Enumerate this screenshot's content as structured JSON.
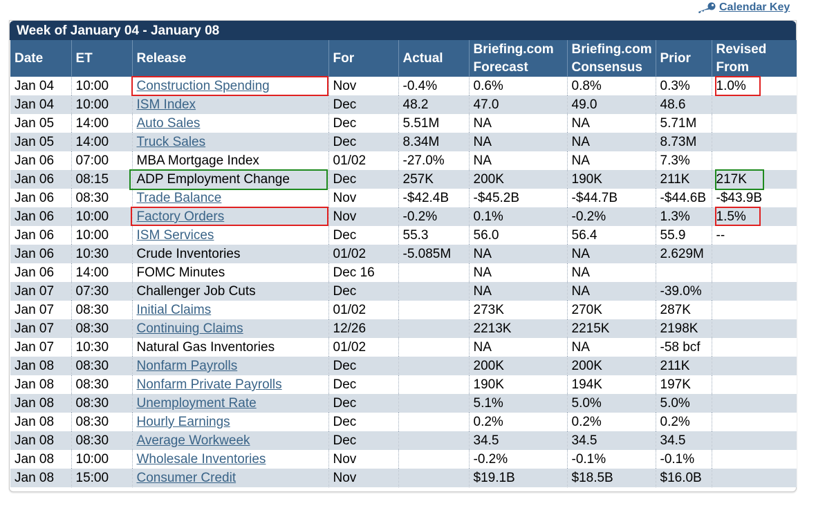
{
  "calendar_key": {
    "label": "Calendar Key",
    "icon": "key-icon"
  },
  "week_title": "Week of January 04 - January 08",
  "columns": [
    {
      "line1": "Date",
      "line2": ""
    },
    {
      "line1": "ET",
      "line2": ""
    },
    {
      "line1": "Release",
      "line2": ""
    },
    {
      "line1": "For",
      "line2": ""
    },
    {
      "line1": "Actual",
      "line2": ""
    },
    {
      "line1": "Briefing.com",
      "line2": "Forecast"
    },
    {
      "line1": "Briefing.com",
      "line2": "Consensus"
    },
    {
      "line1": "Prior",
      "line2": ""
    },
    {
      "line1": "Revised",
      "line2": "From"
    }
  ],
  "rows": [
    {
      "date": "Jan 04",
      "et": "10:00",
      "release": "Construction Spending",
      "link": true,
      "for": "Nov",
      "actual": "-0.4%",
      "forecast": "0.6%",
      "consensus": "0.8%",
      "prior": "0.3%",
      "revised": "1.0%"
    },
    {
      "date": "Jan 04",
      "et": "10:00",
      "release": "ISM Index",
      "link": true,
      "for": "Dec",
      "actual": "48.2",
      "forecast": "47.0",
      "consensus": "49.0",
      "prior": "48.6",
      "revised": ""
    },
    {
      "date": "Jan 05",
      "et": "14:00",
      "release": "Auto Sales",
      "link": true,
      "for": "Dec",
      "actual": "5.51M",
      "forecast": "NA",
      "consensus": "NA",
      "prior": "5.71M",
      "revised": ""
    },
    {
      "date": "Jan 05",
      "et": "14:00",
      "release": "Truck Sales",
      "link": true,
      "for": "Dec",
      "actual": "8.34M",
      "forecast": "NA",
      "consensus": "NA",
      "prior": "8.73M",
      "revised": ""
    },
    {
      "date": "Jan 06",
      "et": "07:00",
      "release": "MBA Mortgage Index",
      "link": false,
      "for": "01/02",
      "actual": "-27.0%",
      "forecast": "NA",
      "consensus": "NA",
      "prior": "7.3%",
      "revised": ""
    },
    {
      "date": "Jan 06",
      "et": "08:15",
      "release": "ADP Employment Change",
      "link": false,
      "for": "Dec",
      "actual": "257K",
      "forecast": "200K",
      "consensus": "190K",
      "prior": "211K",
      "revised": "217K"
    },
    {
      "date": "Jan 06",
      "et": "08:30",
      "release": "Trade Balance",
      "link": true,
      "for": "Nov",
      "actual": "-$42.4B",
      "forecast": "-$45.2B",
      "consensus": "-$44.7B",
      "prior": "-$44.6B",
      "revised": "-$43.9B"
    },
    {
      "date": "Jan 06",
      "et": "10:00",
      "release": "Factory Orders",
      "link": true,
      "for": "Nov",
      "actual": "-0.2%",
      "forecast": "0.1%",
      "consensus": "-0.2%",
      "prior": "1.3%",
      "revised": "1.5%"
    },
    {
      "date": "Jan 06",
      "et": "10:00",
      "release": "ISM Services",
      "link": true,
      "for": "Dec",
      "actual": "55.3",
      "forecast": "56.0",
      "consensus": "56.4",
      "prior": "55.9",
      "revised": "--"
    },
    {
      "date": "Jan 06",
      "et": "10:30",
      "release": "Crude Inventories",
      "link": false,
      "for": "01/02",
      "actual": "-5.085M",
      "forecast": "NA",
      "consensus": "NA",
      "prior": "2.629M",
      "revised": ""
    },
    {
      "date": "Jan 06",
      "et": "14:00",
      "release": "FOMC Minutes",
      "link": false,
      "for": "Dec 16",
      "actual": "",
      "forecast": "NA",
      "consensus": "NA",
      "prior": "",
      "revised": ""
    },
    {
      "date": "Jan 07",
      "et": "07:30",
      "release": "Challenger Job Cuts",
      "link": false,
      "for": "Dec",
      "actual": "",
      "forecast": "NA",
      "consensus": "NA",
      "prior": "-39.0%",
      "revised": ""
    },
    {
      "date": "Jan 07",
      "et": "08:30",
      "release": "Initial Claims",
      "link": true,
      "for": "01/02",
      "actual": "",
      "forecast": "273K",
      "consensus": "270K",
      "prior": "287K",
      "revised": ""
    },
    {
      "date": "Jan 07",
      "et": "08:30",
      "release": "Continuing Claims",
      "link": true,
      "for": "12/26",
      "actual": "",
      "forecast": "2213K",
      "consensus": "2215K",
      "prior": "2198K",
      "revised": ""
    },
    {
      "date": "Jan 07",
      "et": "10:30",
      "release": "Natural Gas Inventories",
      "link": false,
      "for": "01/02",
      "actual": "",
      "forecast": "NA",
      "consensus": "NA",
      "prior": "-58 bcf",
      "revised": ""
    },
    {
      "date": "Jan 08",
      "et": "08:30",
      "release": "Nonfarm Payrolls",
      "link": true,
      "for": "Dec",
      "actual": "",
      "forecast": "200K",
      "consensus": "200K",
      "prior": "211K",
      "revised": ""
    },
    {
      "date": "Jan 08",
      "et": "08:30",
      "release": "Nonfarm Private Payrolls",
      "link": true,
      "for": "Dec",
      "actual": "",
      "forecast": "190K",
      "consensus": "194K",
      "prior": "197K",
      "revised": ""
    },
    {
      "date": "Jan 08",
      "et": "08:30",
      "release": "Unemployment Rate",
      "link": true,
      "for": "Dec",
      "actual": "",
      "forecast": "5.1%",
      "consensus": "5.0%",
      "prior": "5.0%",
      "revised": ""
    },
    {
      "date": "Jan 08",
      "et": "08:30",
      "release": "Hourly Earnings",
      "link": true,
      "for": "Dec",
      "actual": "",
      "forecast": "0.2%",
      "consensus": "0.2%",
      "prior": "0.2%",
      "revised": ""
    },
    {
      "date": "Jan 08",
      "et": "08:30",
      "release": "Average Workweek",
      "link": true,
      "for": "Dec",
      "actual": "",
      "forecast": "34.5",
      "consensus": "34.5",
      "prior": "34.5",
      "revised": ""
    },
    {
      "date": "Jan 08",
      "et": "10:00",
      "release": "Wholesale Inventories",
      "link": true,
      "for": "Nov",
      "actual": "",
      "forecast": "-0.2%",
      "consensus": "-0.1%",
      "prior": "-0.1%",
      "revised": ""
    },
    {
      "date": "Jan 08",
      "et": "15:00",
      "release": "Consumer Credit",
      "link": true,
      "for": "Nov",
      "actual": "",
      "forecast": "$19.1B",
      "consensus": "$18.5B",
      "prior": "$16.0B",
      "revised": ""
    }
  ],
  "colors": {
    "title_bar": "#1c3a5e",
    "header": "#38638d",
    "row_shade": "#d6dee6",
    "link": "#3a6488",
    "highlight_red": "#e02020",
    "highlight_green": "#1e8a1e"
  }
}
